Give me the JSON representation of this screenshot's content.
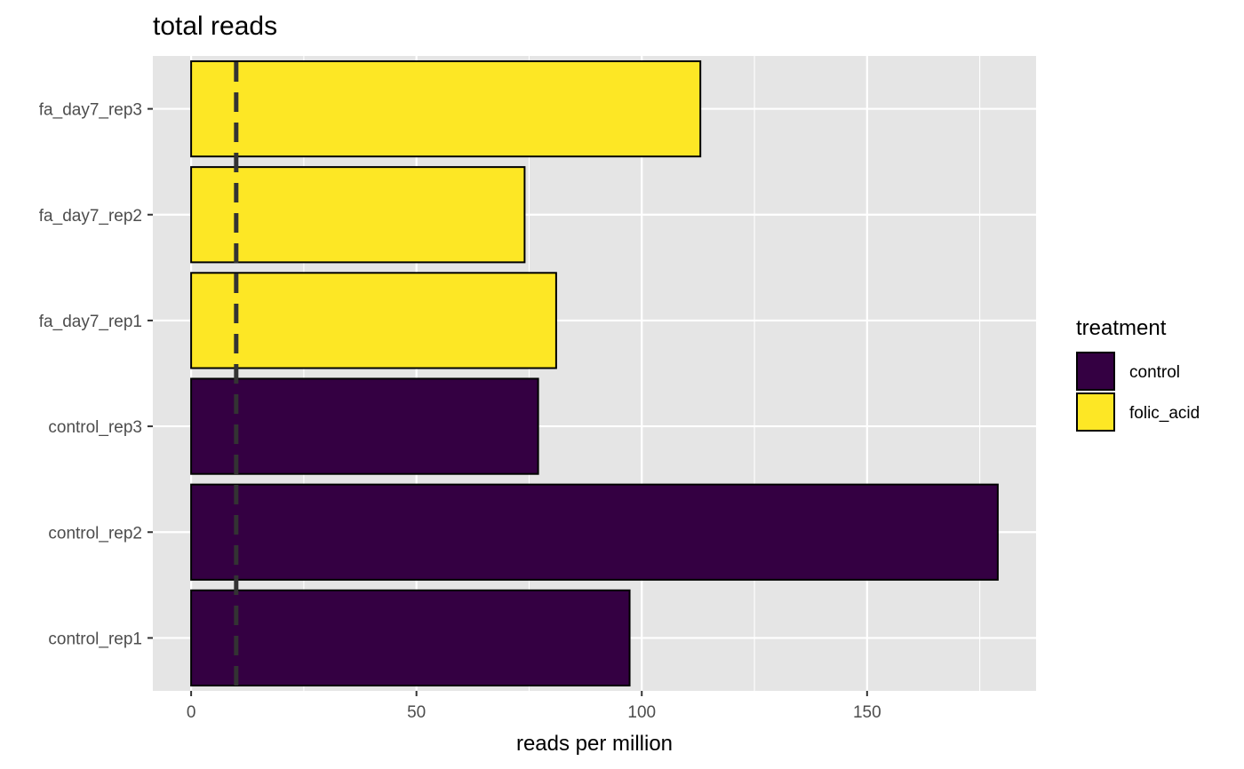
{
  "chart_data": {
    "type": "bar",
    "orientation": "horizontal",
    "title": "total reads",
    "xlabel": "reads per million",
    "ylabel": "",
    "xlim": [
      -8.5,
      187.5
    ],
    "x_ticks": [
      0,
      50,
      100,
      150
    ],
    "reference_line": {
      "x": 10,
      "style": "dashed"
    },
    "grid": true,
    "categories": [
      "control_rep1",
      "control_rep2",
      "control_rep3",
      "fa_day7_rep1",
      "fa_day7_rep2",
      "fa_day7_rep3"
    ],
    "values": [
      97.3,
      179,
      77,
      81,
      74,
      113
    ],
    "treatment": [
      "control",
      "control",
      "control",
      "folic_acid",
      "folic_acid",
      "folic_acid"
    ],
    "legend": {
      "title": "treatment",
      "position": "right",
      "entries": [
        {
          "label": "control",
          "color": "#340042"
        },
        {
          "label": "folic_acid",
          "color": "#FDE725"
        }
      ]
    },
    "colors": {
      "panel": "#E5E5E5",
      "grid": "#FFFFFF",
      "bar_outline": "#000000",
      "reference_line": "#333333"
    }
  }
}
